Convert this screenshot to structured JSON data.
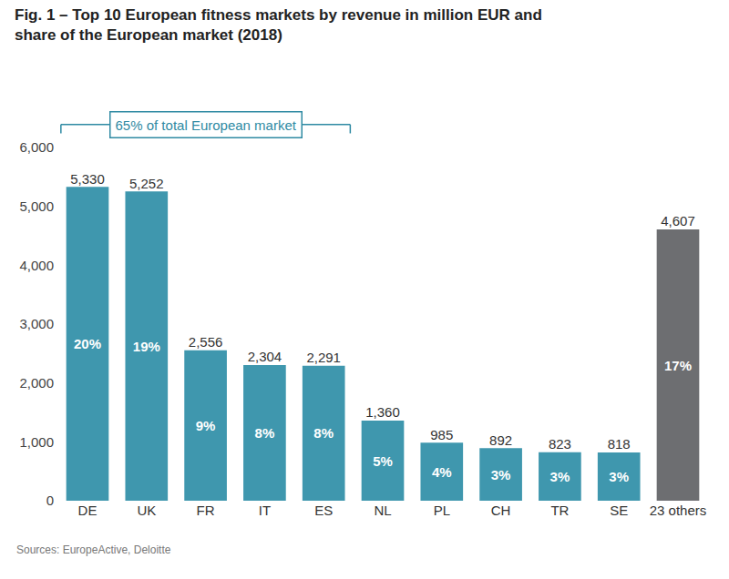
{
  "chart_data": {
    "type": "bar",
    "title": "Fig. 1 – Top 10 European fitness markets by revenue in million EUR and share of the European market (2018)",
    "categories": [
      "DE",
      "UK",
      "FR",
      "IT",
      "ES",
      "NL",
      "PL",
      "CH",
      "TR",
      "SE",
      "23 others"
    ],
    "values": [
      5330,
      5252,
      2556,
      2304,
      2291,
      1360,
      985,
      892,
      823,
      818,
      4607
    ],
    "value_labels": [
      "5,330",
      "5,252",
      "2,556",
      "2,304",
      "2,291",
      "1,360",
      "985",
      "892",
      "823",
      "818",
      "4,607"
    ],
    "share_labels": [
      "20%",
      "19%",
      "9%",
      "8%",
      "8%",
      "5%",
      "4%",
      "3%",
      "3%",
      "3%",
      "17%"
    ],
    "colors": [
      "#3f97ae",
      "#3f97ae",
      "#3f97ae",
      "#3f97ae",
      "#3f97ae",
      "#3f97ae",
      "#3f97ae",
      "#3f97ae",
      "#3f97ae",
      "#3f97ae",
      "#6d6e71"
    ],
    "ylim": [
      0,
      6000
    ],
    "yticks": [
      0,
      {
        "value": 1000,
        "label": "1,000"
      },
      {
        "value": 2000,
        "label": "2,000"
      },
      {
        "value": 3000,
        "label": "3,000"
      },
      {
        "value": 4000,
        "label": "4,000"
      },
      {
        "value": 5000,
        "label": "5,000"
      },
      {
        "value": 6000,
        "label": "6,000"
      }
    ],
    "grid": false,
    "data_labels": true,
    "annotations": [
      {
        "text": "65% of total European market",
        "from": "DE",
        "to": "ES"
      }
    ],
    "source": "Sources: EuropeActive, Deloitte"
  }
}
